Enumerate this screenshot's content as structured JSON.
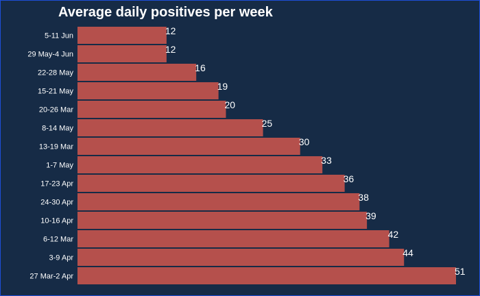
{
  "chart_data": {
    "type": "bar",
    "orientation": "horizontal",
    "title": "Average daily positives per week",
    "xlabel": "",
    "ylabel": "",
    "categories": [
      "5-11 Jun",
      "29 May-4 Jun",
      "22-28 May",
      "15-21 May",
      "20-26 Mar",
      "8-14 May",
      "13-19 Mar",
      "1-7 May",
      "17-23 Apr",
      "24-30 Apr",
      "10-16 Apr",
      "6-12 Mar",
      "3-9 Apr",
      "27 Mar-2 Apr"
    ],
    "values": [
      12,
      12,
      16,
      19,
      20,
      25,
      30,
      33,
      36,
      38,
      39,
      42,
      44,
      51
    ],
    "xlim": [
      0,
      51
    ],
    "grid": false,
    "legend": "none",
    "colors": {
      "background": "#162b46",
      "bar": "#b5504c",
      "text": "#ffffff",
      "border": "#1d4fd8"
    }
  }
}
